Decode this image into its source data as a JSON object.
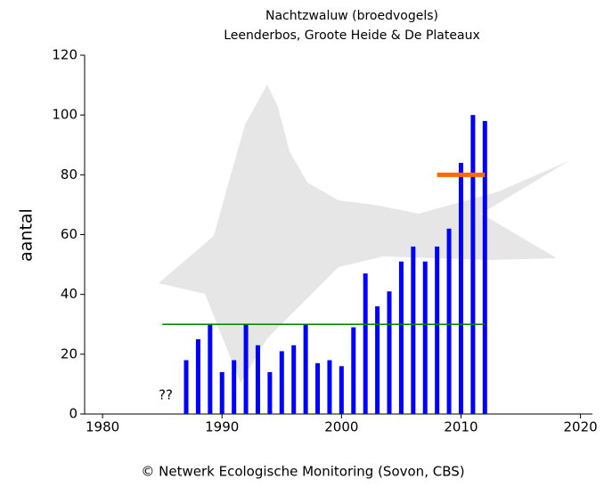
{
  "chart_data": {
    "type": "bar",
    "title": "Nachtzwaluw (broedvogels)",
    "subtitle": "Leenderbos, Groote Heide & De Plateaux",
    "ylabel": "aantal",
    "x": [
      1987,
      1988,
      1989,
      1990,
      1991,
      1992,
      1993,
      1994,
      1995,
      1996,
      1997,
      1998,
      1999,
      2000,
      2001,
      2002,
      2003,
      2004,
      2005,
      2006,
      2007,
      2008,
      2009,
      2010,
      2011,
      2012
    ],
    "values": [
      18,
      25,
      30,
      14,
      18,
      30,
      23,
      14,
      21,
      23,
      30,
      17,
      18,
      16,
      29,
      47,
      36,
      41,
      51,
      56,
      51,
      56,
      62,
      84,
      100,
      98
    ],
    "color": "#0000ff",
    "xlim": [
      1978.5,
      2021
    ],
    "xticks": [
      1980,
      1990,
      2000,
      2010,
      2020
    ],
    "ylim": [
      0,
      120
    ],
    "yticks": [
      0,
      20,
      40,
      60,
      80,
      100,
      120
    ],
    "reference_lines": [
      {
        "value": 30,
        "x": [
          1985,
          2012
        ],
        "color": "#008000"
      },
      {
        "value": 80,
        "x": [
          2008,
          2012
        ],
        "color": "#ff6a00"
      }
    ],
    "annotation": "??",
    "footer": "© Netwerk Ecologische Monitoring (Sovon, CBS)"
  }
}
